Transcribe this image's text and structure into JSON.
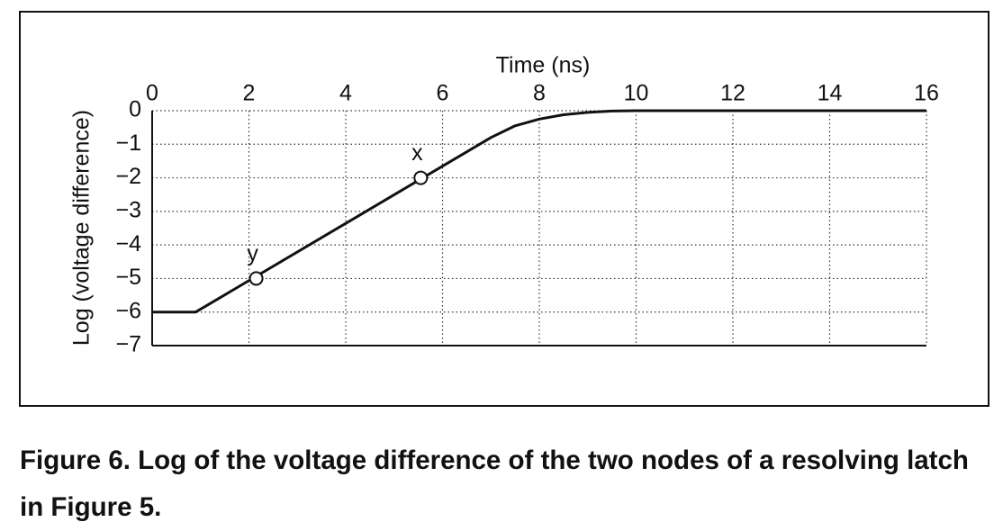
{
  "chart_data": {
    "type": "line",
    "xlabel": "Time (ns)",
    "ylabel": "Log (voltage difference)",
    "x": [
      0,
      0.9,
      7,
      7.5,
      8,
      8.5,
      9,
      9.5,
      10,
      16
    ],
    "series": [
      {
        "color": "#111111",
        "values": [
          -6,
          -6,
          -0.8,
          -0.45,
          -0.25,
          -0.12,
          -0.05,
          -0.01,
          0,
          0
        ]
      }
    ],
    "points": [
      {
        "label": "x",
        "x": 5.55,
        "y": -2
      },
      {
        "label": "y",
        "x": 2.15,
        "y": -5
      }
    ],
    "xlim": [
      0,
      16
    ],
    "xticks": [
      0,
      2,
      4,
      6,
      8,
      10,
      12,
      14,
      16
    ],
    "ylim": [
      -7,
      0
    ],
    "yticks": [
      0,
      {
        "value": -1,
        "label": "−1"
      },
      {
        "value": -2,
        "label": "−2"
      },
      {
        "value": -3,
        "label": "−3"
      },
      {
        "value": -4,
        "label": "−4"
      },
      {
        "value": -5,
        "label": "−5"
      },
      {
        "value": -6,
        "label": "−6"
      },
      {
        "value": -7,
        "label": "−7"
      }
    ],
    "grid": true,
    "caption": "Figure 6. Log of the voltage difference of the two nodes of a resolving latch in Figure 5."
  }
}
